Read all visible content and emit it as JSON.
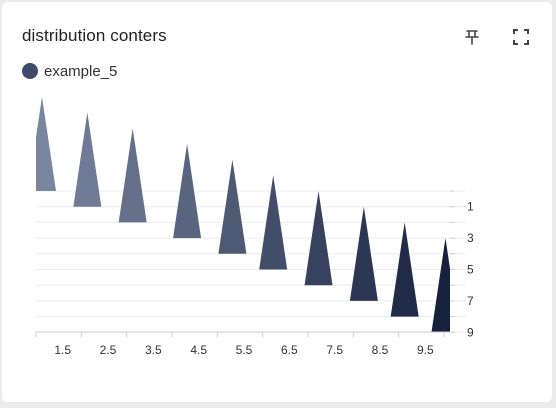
{
  "card": {
    "title": "distribution conters",
    "pin_icon": "pin-icon",
    "fullscreen_icon": "fullscreen-icon"
  },
  "legend": {
    "label": "example_5",
    "color": "#3d4a68"
  },
  "chart_data": {
    "type": "pictorial-bar",
    "series": [
      {
        "name": "example_5",
        "points": [
          {
            "x": 1.0,
            "base": 0,
            "top": -6
          },
          {
            "x": 2.0,
            "base": 1,
            "top": -5
          },
          {
            "x": 3.0,
            "base": 2,
            "top": -4
          },
          {
            "x": 4.2,
            "base": 3,
            "top": -3
          },
          {
            "x": 5.2,
            "base": 4,
            "top": -2
          },
          {
            "x": 6.1,
            "base": 5,
            "top": -1
          },
          {
            "x": 7.1,
            "base": 6,
            "top": 0
          },
          {
            "x": 8.1,
            "base": 7,
            "top": 1
          },
          {
            "x": 9.0,
            "base": 8,
            "top": 2
          },
          {
            "x": 9.9,
            "base": 9,
            "top": 3
          }
        ],
        "color_start": "#7a86a0",
        "color_end": "#16213d"
      }
    ],
    "x_ticks": [
      "1.5",
      "2.5",
      "3.5",
      "4.5",
      "5.5",
      "6.5",
      "7.5",
      "8.5",
      "9.5"
    ],
    "y_ticks": [
      "1",
      "3",
      "5",
      "7",
      "9"
    ],
    "xlim": [
      1.0,
      10.0
    ],
    "y_axis_position": "right",
    "y_inverted": true,
    "grid": true
  }
}
